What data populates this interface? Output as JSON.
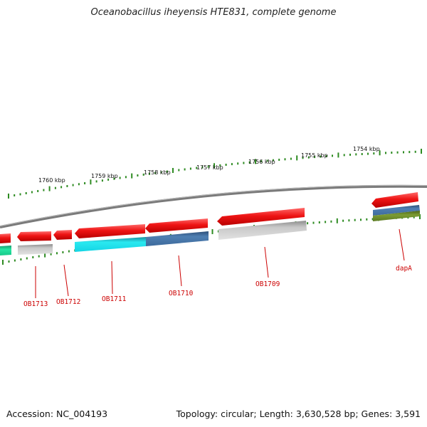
{
  "title": "Oceanobacillus iheyensis HTE831, complete genome",
  "footer": {
    "accession": "Accession: NC_004193",
    "summary": "Topology: circular; Length: 3,630,528 bp; Genes: 3,591"
  },
  "colors": {
    "tick": "#2e8b22",
    "backbone": "#7a7a7a",
    "gene_red": "#e81010",
    "label_red": "#cc0000",
    "cds_gray": "#b4b4b4",
    "cds_cyan": "#22e6ee",
    "cds_blue": "#4a77a8",
    "cds_teal": "#22dd9c",
    "cds_olive": "#6a8a2a"
  },
  "scale_labels": [
    "1760 kbp",
    "1759 kbp",
    "1758 kbp",
    "1757 kbp",
    "1756 kbp",
    "1755 kbp",
    "1754 kbp"
  ],
  "genes": [
    {
      "name": "OB1713"
    },
    {
      "name": "OB1712"
    },
    {
      "name": "OB1711"
    },
    {
      "name": "OB1710"
    },
    {
      "name": "OB1709"
    },
    {
      "name": "dapA"
    }
  ]
}
